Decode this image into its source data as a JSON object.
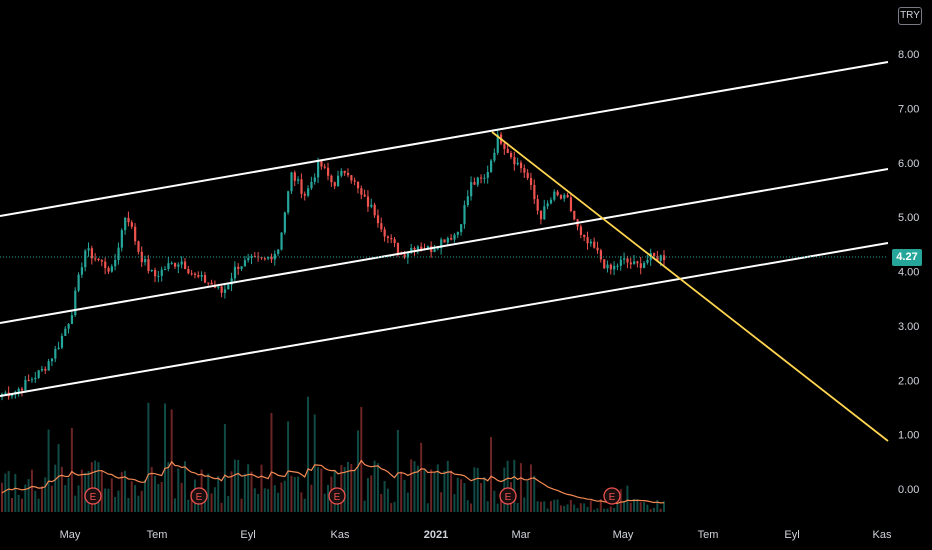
{
  "currency_button": "TRY",
  "last_price": "4.27",
  "colors": {
    "up": "#26a69a",
    "down": "#ef5350",
    "channel": "#ffffff",
    "trendline": "#ffd54f",
    "volume_ma": "#f48a55",
    "earnings": "#ef5350"
  },
  "chart_data": {
    "type": "candlestick",
    "y_axis": {
      "ticks": [
        "8.00",
        "7.00",
        "6.00",
        "5.00",
        "4.00",
        "3.00",
        "2.00",
        "1.00",
        "0.00"
      ],
      "range": [
        -0.6,
        8.8
      ]
    },
    "x_axis": {
      "ticks": [
        {
          "label": "May",
          "bold": false
        },
        {
          "label": "Tem",
          "bold": false
        },
        {
          "label": "Eyl",
          "bold": false
        },
        {
          "label": "Kas",
          "bold": false
        },
        {
          "label": "2021",
          "bold": true
        },
        {
          "label": "Mar",
          "bold": false
        },
        {
          "label": "May",
          "bold": false
        },
        {
          "label": "Tem",
          "bold": false
        },
        {
          "label": "Eyl",
          "bold": false
        },
        {
          "label": "Kas",
          "bold": false
        }
      ]
    },
    "close_path": [
      1.75,
      1.8,
      2.0,
      2.2,
      2.6,
      3.2,
      4.4,
      4.2,
      4.0,
      5.1,
      4.3,
      3.9,
      4.1,
      4.2,
      3.9,
      3.8,
      3.6,
      4.1,
      4.2,
      4.2,
      4.4,
      5.8,
      5.4,
      6.0,
      5.6,
      5.9,
      5.4,
      5.1,
      4.6,
      4.3,
      4.5,
      4.4,
      4.6,
      4.7,
      5.6,
      5.7,
      6.5,
      6.1,
      5.8,
      5.0,
      5.4,
      5.3,
      4.6,
      4.4,
      4.0,
      4.2,
      4.1,
      4.25,
      4.27
    ],
    "earnings_markers": [
      "E",
      "E",
      "E",
      "E",
      "E"
    ],
    "annotations": [
      "ascending channel (3 parallel lines)",
      "descending trendline"
    ]
  }
}
